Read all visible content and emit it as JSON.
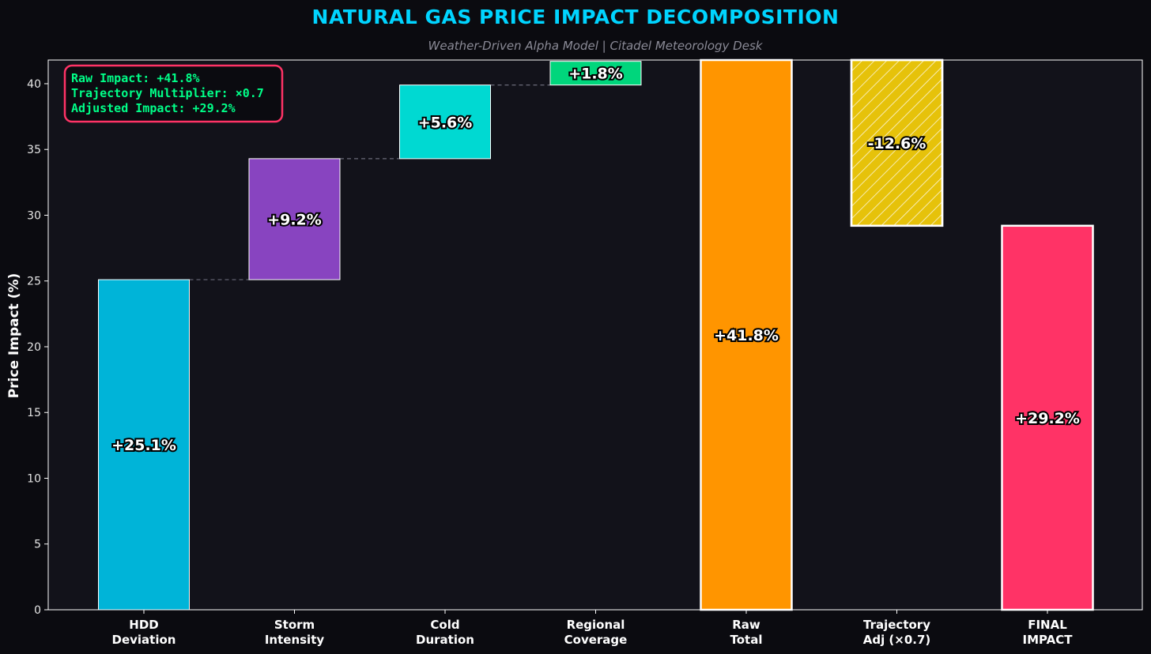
{
  "chart_data": {
    "type": "bar",
    "title": "NATURAL GAS PRICE IMPACT DECOMPOSITION",
    "subtitle": "Weather-Driven Alpha Model | Citadel Meteorology Desk",
    "xlabel": "",
    "ylabel": "Price Impact (%)",
    "ylim": [
      0,
      41.8
    ],
    "yticks": [
      0,
      5,
      10,
      15,
      20,
      25,
      30,
      35,
      40
    ],
    "grid": false,
    "categories": [
      [
        "HDD",
        "Deviation"
      ],
      [
        "Storm",
        "Intensity"
      ],
      [
        "Cold",
        "Duration"
      ],
      [
        "Regional",
        "Coverage"
      ],
      [
        "Raw",
        "Total"
      ],
      [
        "Trajectory",
        "Adj (×0.7)"
      ],
      [
        "FINAL",
        "IMPACT"
      ]
    ],
    "bars": [
      {
        "base": 0,
        "top": 25.1,
        "label": "+25.1%",
        "color": "#00b4d8",
        "kind": "increment"
      },
      {
        "base": 25.1,
        "top": 34.3,
        "label": "+9.2%",
        "color": "#8844c0",
        "kind": "increment"
      },
      {
        "base": 34.3,
        "top": 39.9,
        "label": "+5.6%",
        "color": "#00d9d2",
        "kind": "increment"
      },
      {
        "base": 39.9,
        "top": 41.7,
        "label": "+1.8%",
        "color": "#00d67c",
        "kind": "increment"
      },
      {
        "base": 0,
        "top": 41.8,
        "label": "+41.8%",
        "color": "#ff9500",
        "kind": "total"
      },
      {
        "base": 29.2,
        "top": 41.8,
        "label": "-12.6%",
        "color": "#e6c20a",
        "kind": "adjustment"
      },
      {
        "base": 0,
        "top": 29.2,
        "label": "+29.2%",
        "color": "#ff3366",
        "kind": "total"
      }
    ],
    "info_box": {
      "lines": [
        "Raw Impact: +41.8%",
        "Trajectory Multiplier: ×0.7",
        "Adjusted Impact: +29.2%"
      ],
      "text_color": "#00ff88",
      "border_color": "#ff3366",
      "placement": "top-left"
    },
    "colors": {
      "title": "#00d4ff",
      "subtitle": "#8a8a96",
      "figure_bg": "#0b0b10",
      "plot_bg": "#12121a",
      "axis": "#ffffff",
      "connector": "#6a6a78"
    }
  }
}
